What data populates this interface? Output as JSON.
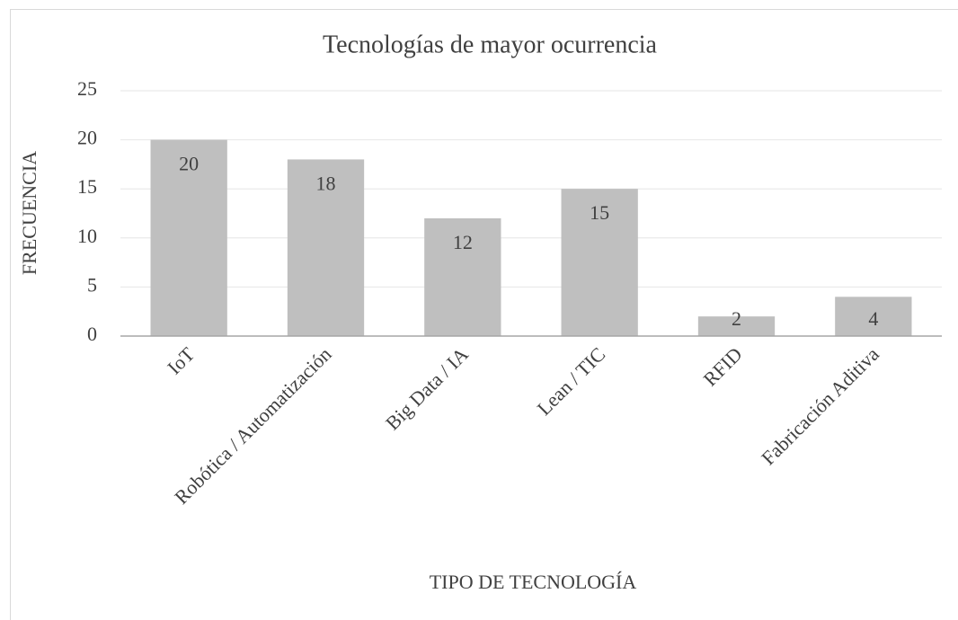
{
  "chart_data": {
    "type": "bar",
    "title": "Tecnologías de mayor ocurrencia",
    "x_label": "TIPO DE TECNOLOGÍA",
    "y_label": "FRECUENCIA",
    "categories": [
      "IoT",
      "Robótica / Automatización",
      "Big Data / IA",
      "Lean / TIC",
      "RFID",
      "Fabricación Aditiva"
    ],
    "values": [
      20,
      18,
      12,
      15,
      2,
      4
    ],
    "color": "#bfbfbf",
    "ylim": [
      0,
      25
    ],
    "yticks": [
      0,
      5,
      10,
      15,
      20,
      25
    ],
    "grid": true
  }
}
